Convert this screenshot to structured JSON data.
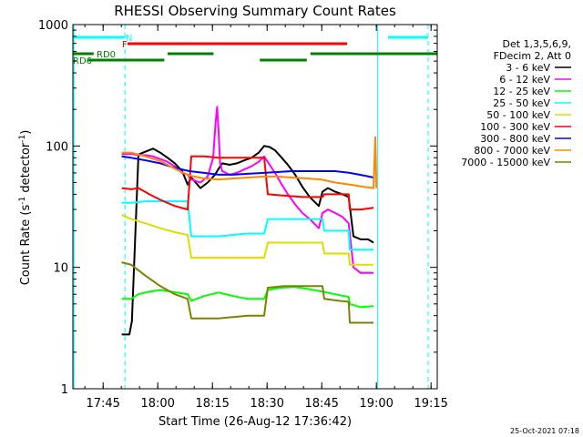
{
  "chart_data": {
    "type": "line",
    "title": "RHESSI Observing Summary Count Rates",
    "xlabel": "Start Time (26-Aug-12 17:36:42)",
    "ylabel_parts": [
      "Count Rate (s",
      "-1",
      " detector",
      "-1",
      ")"
    ],
    "x_unit": "minutes after 17:36:42",
    "xlim": [
      0,
      100
    ],
    "ylim": [
      1,
      1000
    ],
    "y_scale": "log",
    "x_ticks": [
      {
        "t": 8.3,
        "label": "17:45"
      },
      {
        "t": 23.3,
        "label": "18:00"
      },
      {
        "t": 38.3,
        "label": "18:15"
      },
      {
        "t": 53.3,
        "label": "18:30"
      },
      {
        "t": 68.3,
        "label": "18:45"
      },
      {
        "t": 83.3,
        "label": "19:00"
      },
      {
        "t": 98.3,
        "label": "19:15"
      }
    ],
    "y_ticks": [
      {
        "v": 1,
        "label": "1"
      },
      {
        "v": 10,
        "label": "10"
      },
      {
        "v": 100,
        "label": "100"
      },
      {
        "v": 1000,
        "label": "1000"
      }
    ],
    "legend_header": [
      "Det 1,3,5,6,9,",
      "FDecim 2, Att 0"
    ],
    "legend_position": "right",
    "series": [
      {
        "name": "3 - 6 keV",
        "color": "#000000",
        "x": [
          13.4,
          15.5,
          16.2,
          18,
          20,
          22,
          24,
          26,
          28,
          30,
          31.5,
          32.5,
          35,
          37,
          39,
          40,
          41,
          43,
          45,
          47,
          49,
          51,
          52.5,
          54,
          55.5,
          57,
          59,
          61,
          63,
          65,
          67.5,
          68.5,
          70,
          72,
          74,
          75.7,
          77,
          79,
          81,
          82.5
        ],
        "y": [
          2.8,
          2.8,
          3.6,
          85,
          90,
          95,
          88,
          80,
          72,
          62,
          48,
          55,
          45,
          50,
          58,
          65,
          72,
          70,
          72,
          76,
          80,
          88,
          100,
          98,
          92,
          82,
          70,
          58,
          46,
          38,
          32,
          42,
          45,
          42,
          40,
          38,
          18,
          17,
          17,
          16
        ]
      },
      {
        "name": "6 - 12 keV",
        "color": "#ff00ff",
        "x": [
          13.4,
          16.2,
          18,
          20,
          22,
          24,
          26,
          28,
          30,
          31.5,
          32.5,
          35,
          37,
          38.5,
          39.2,
          39.6,
          40,
          40.4,
          41,
          43,
          45,
          47,
          49,
          51,
          52.5,
          54,
          55.5,
          57,
          59,
          61,
          63,
          65,
          67.5,
          68.5,
          70,
          72,
          74,
          75.7,
          77,
          79,
          81,
          82.5
        ],
        "y": [
          86,
          86,
          84,
          84,
          82,
          78,
          74,
          68,
          60,
          58,
          53,
          50,
          56,
          80,
          160,
          210,
          130,
          72,
          62,
          58,
          60,
          64,
          68,
          74,
          82,
          70,
          60,
          50,
          40,
          33,
          28,
          25,
          21,
          28,
          30,
          28,
          26,
          23,
          10,
          9,
          9,
          9
        ]
      },
      {
        "name": "12 - 25 keV",
        "color": "#00ff00",
        "x": [
          13.4,
          16,
          18,
          21,
          24,
          27,
          30,
          31.5,
          32.5,
          36,
          40,
          44,
          48,
          52.5,
          53.5,
          57,
          61,
          65,
          68.5,
          72,
          75.7,
          76,
          79,
          82.5
        ],
        "y": [
          5.5,
          5.5,
          6,
          6.3,
          6.5,
          6.3,
          6.1,
          6,
          5.3,
          5.8,
          6.2,
          5.8,
          5.5,
          5.5,
          6.5,
          6.8,
          6.9,
          6.6,
          6.3,
          6,
          5.7,
          5,
          4.7,
          4.8
        ]
      },
      {
        "name": "25 - 50 keV",
        "color": "#00ffff",
        "x": [
          13.4,
          16,
          20,
          24,
          28,
          31.5,
          32.5,
          36,
          40,
          44,
          48,
          52.5,
          53.5,
          58,
          63,
          68.5,
          69,
          73,
          75.7,
          76,
          79,
          82.5
        ],
        "y": [
          34,
          34,
          35,
          35,
          35,
          35,
          18,
          18,
          18,
          18.5,
          19,
          19,
          25,
          25,
          25,
          25,
          20,
          20,
          20,
          14,
          14,
          14
        ]
      },
      {
        "name": "50 - 100 keV",
        "color": "#dddd00",
        "x": [
          13.4,
          16,
          20,
          24,
          28,
          31.5,
          32.5,
          36,
          40,
          44,
          48,
          52.5,
          53.5,
          58,
          63,
          68.5,
          69,
          73,
          75.7,
          76,
          79,
          82.5
        ],
        "y": [
          27,
          25,
          23,
          21,
          19.5,
          18.5,
          12,
          12,
          12,
          12,
          12,
          12,
          16,
          16,
          16,
          16,
          13,
          13,
          13,
          10.5,
          10.5,
          10.5
        ]
      },
      {
        "name": "100 - 300 keV",
        "color": "#ff0000",
        "x": [
          13.4,
          16,
          18,
          21,
          24,
          28,
          31.5,
          32.5,
          36,
          40,
          44,
          48,
          52.5,
          53.5,
          58,
          63,
          68.5,
          69,
          73,
          75.7,
          76,
          79,
          82.5
        ],
        "y": [
          45,
          44,
          45,
          40,
          36,
          32,
          30,
          82,
          82,
          80,
          80,
          80,
          80,
          40,
          39,
          38,
          38,
          40,
          40,
          40,
          30,
          30,
          31
        ]
      },
      {
        "name": "300 - 800 keV",
        "color": "#0000ff",
        "x": [
          13.4,
          16,
          20,
          24,
          28,
          32,
          36,
          40,
          44,
          48,
          52.5,
          56,
          60,
          64,
          68,
          72,
          76,
          80,
          82.5
        ],
        "y": [
          82,
          80,
          76,
          72,
          66,
          62,
          60,
          58,
          58,
          59,
          60,
          61,
          62,
          62,
          62,
          62,
          60,
          57,
          55
        ]
      },
      {
        "name": "800 - 7000 keV",
        "color": "#ff8800",
        "x": [
          13.4,
          16,
          20,
          24,
          28,
          32,
          36,
          40,
          44,
          48,
          52.5,
          56,
          60,
          64,
          68,
          72,
          76,
          80,
          82.5,
          83,
          83.3
        ],
        "y": [
          88,
          88,
          82,
          75,
          65,
          57,
          54,
          53,
          54,
          55,
          56,
          56,
          55,
          54,
          53,
          50,
          48,
          46,
          45,
          118,
          45
        ]
      },
      {
        "name": "7000 - 15000 keV",
        "color": "#808000",
        "x": [
          13.4,
          16,
          20,
          24,
          28,
          31.5,
          32.5,
          36,
          40,
          44,
          48,
          52.5,
          53.5,
          58,
          63,
          68.5,
          69,
          73,
          75.7,
          76,
          79,
          82.5
        ],
        "y": [
          11,
          10.5,
          8.5,
          7,
          6,
          5.5,
          3.8,
          3.8,
          3.8,
          3.9,
          4,
          4,
          6.8,
          7,
          7,
          7,
          5.5,
          5.3,
          5.2,
          3.5,
          3.5,
          3.5
        ]
      }
    ],
    "state_bars": [
      {
        "label": "N",
        "color": "#00ffff",
        "label_at": 14.5,
        "segments": [
          [
            0,
            14.3
          ],
          [
            86.5,
            97.5
          ]
        ]
      },
      {
        "label": "F",
        "color": "#ff0000",
        "label_at": 13.5,
        "segments": [
          [
            15,
            75.3
          ]
        ]
      },
      {
        "label": "RD0",
        "color": "#008000",
        "label_at": 6.5,
        "segments": [
          [
            0,
            5.7
          ],
          [
            26,
            38.6
          ],
          [
            65.2,
            100
          ]
        ]
      },
      {
        "label": "RD6",
        "color": "#008000",
        "label_at": 0,
        "segments": [
          [
            4.2,
            25.1
          ],
          [
            51.3,
            64.2
          ]
        ]
      }
    ],
    "vertical_markers": [
      {
        "t": 0.3,
        "style": "solid",
        "color": "#00ffff"
      },
      {
        "t": 14.3,
        "style": "dashed",
        "color": "#00ffff"
      },
      {
        "t": 83.6,
        "style": "solid",
        "color": "#00ffff"
      },
      {
        "t": 97.5,
        "style": "dashed",
        "color": "#00ffff"
      }
    ]
  },
  "footer": {
    "timestamp": "25-Oct-2021 07:18"
  }
}
